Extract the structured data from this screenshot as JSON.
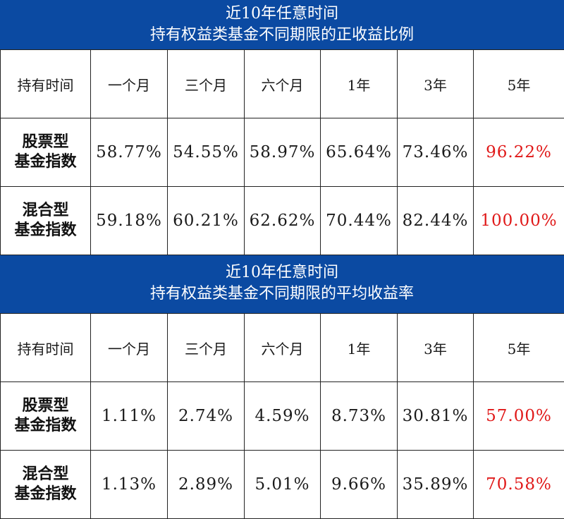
{
  "section1": {
    "title_line1": "近10年任意时间",
    "title_line2": "持有权益类基金不同期限的正收益比例",
    "header": [
      "持有时间",
      "一个月",
      "三个月",
      "六个月",
      "1年",
      "3年",
      "5年"
    ],
    "rows": [
      {
        "label_line1": "股票型",
        "label_line2": "基金指数",
        "values": [
          "58.77%",
          "54.55%",
          "58.97%",
          "65.64%",
          "73.46%",
          "96.22%"
        ]
      },
      {
        "label_line1": "混合型",
        "label_line2": "基金指数",
        "values": [
          "59.18%",
          "60.21%",
          "62.62%",
          "70.44%",
          "82.44%",
          "100.00%"
        ]
      }
    ]
  },
  "section2": {
    "title_line1": "近10年任意时间",
    "title_line2": "持有权益类基金不同期限的平均收益率",
    "header": [
      "持有时间",
      "一个月",
      "三个月",
      "六个月",
      "1年",
      "3年",
      "5年"
    ],
    "rows": [
      {
        "label_line1": "股票型",
        "label_line2": "基金指数",
        "values": [
          "1.11%",
          "2.74%",
          "4.59%",
          "8.73%",
          "30.81%",
          "57.00%"
        ]
      },
      {
        "label_line1": "混合型",
        "label_line2": "基金指数",
        "values": [
          "1.13%",
          "2.89%",
          "5.01%",
          "9.66%",
          "35.89%",
          "70.58%"
        ]
      }
    ]
  },
  "colors": {
    "banner": "#0b4aa2",
    "highlight": "#e01818"
  }
}
